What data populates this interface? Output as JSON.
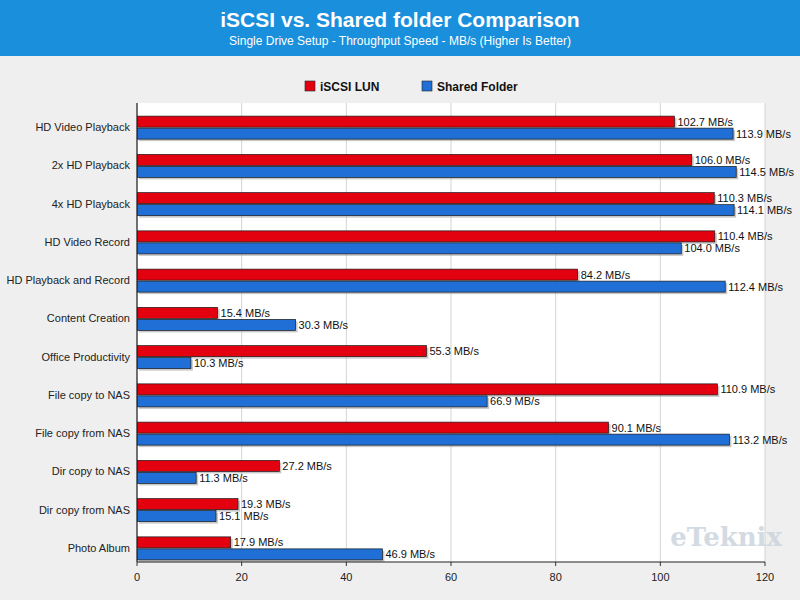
{
  "chart_data": {
    "type": "bar",
    "orientation": "horizontal",
    "title": "iSCSI vs. Shared folder Comparison",
    "subtitle": "Single Drive Setup - Throughput Speed - MB/s (Higher Is Better)",
    "annotations": [
      "eTeknix"
    ],
    "categories": [
      "HD Video Playback",
      "2x HD Playback",
      "4x HD Playback",
      "HD Video Record",
      "HD Playback and Record",
      "Content Creation",
      "Office Productivity",
      "File copy to NAS",
      "File copy from NAS",
      "Dir copy to NAS",
      "Dir copy from NAS",
      "Photo Album"
    ],
    "series": [
      {
        "name": "iSCSI LUN",
        "color": "#e3000f",
        "values": [
          102.7,
          106.0,
          110.3,
          110.4,
          84.2,
          15.4,
          55.3,
          110.9,
          90.1,
          27.2,
          19.3,
          17.9
        ],
        "value_labels": [
          "102.7 MB/s",
          "106.0 MB/s",
          "110.3 MB/s",
          "110.4 MB/s",
          "84.2 MB/s",
          "15.4 MB/s",
          "55.3 MB/s",
          "110.9 MB/s",
          "90.1 MB/s",
          "27.2 MB/s",
          "19.3 MB/s",
          "17.9 MB/s"
        ]
      },
      {
        "name": "Shared Folder",
        "color": "#1f6fd6",
        "values": [
          113.9,
          114.5,
          114.1,
          104.0,
          112.4,
          30.3,
          10.3,
          66.9,
          113.2,
          11.3,
          15.1,
          46.9
        ],
        "value_labels": [
          "113.9 MB/s",
          "114.5 MB/s",
          "114.1 MB/s",
          "104.0 MB/s",
          "112.4 MB/s",
          "30.3 MB/s",
          "10.3 MB/s",
          "66.9 MB/s",
          "113.2 MB/s",
          "11.3 MB/s",
          "15.1 MB/s",
          "46.9 MB/s"
        ]
      }
    ],
    "xlim": [
      0,
      120
    ],
    "xticks": [
      0,
      20,
      40,
      60,
      80,
      100,
      120
    ],
    "grid": true,
    "legend": "top",
    "data_labels": true
  }
}
